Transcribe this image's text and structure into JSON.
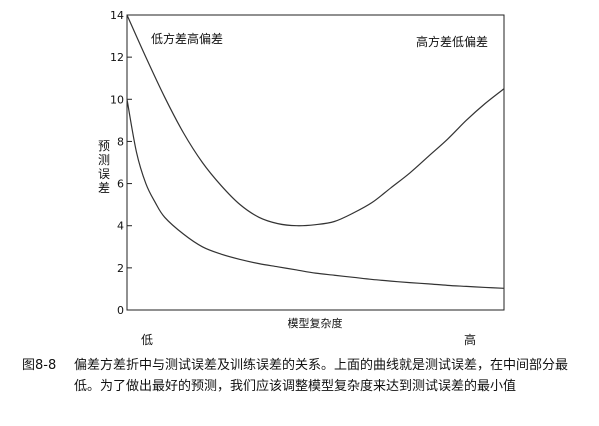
{
  "chart_data": {
    "type": "line",
    "title": "",
    "xlabel": "模型复杂度",
    "ylabel": "预测误差",
    "x_tick_labels": [
      "低",
      "高"
    ],
    "xlim": [
      0,
      10
    ],
    "ylim": [
      0,
      14
    ],
    "y_ticks": [
      0,
      2,
      4,
      6,
      8,
      10,
      12,
      14
    ],
    "grid": false,
    "annotations": [
      "低方差高偏差",
      "高方差低偏差"
    ],
    "series": [
      {
        "x": [
          0,
          0.5,
          1,
          1.5,
          2,
          2.5,
          3,
          3.5,
          4,
          4.5,
          5,
          5.5,
          6,
          6.5,
          7,
          7.5,
          8,
          8.5,
          9,
          9.5,
          10
        ],
        "values": [
          14.0,
          12.0,
          10.1,
          8.4,
          7.0,
          5.9,
          5.0,
          4.4,
          4.1,
          4.0,
          4.05,
          4.2,
          4.6,
          5.1,
          5.8,
          6.5,
          7.3,
          8.1,
          9.0,
          9.8,
          10.5
        ]
      },
      {
        "x": [
          0,
          0.25,
          0.5,
          0.75,
          1,
          1.5,
          2,
          2.5,
          3,
          3.5,
          4,
          4.5,
          5,
          5.5,
          6,
          6.5,
          7,
          7.5,
          8,
          8.5,
          9,
          9.5,
          10
        ],
        "values": [
          10.0,
          7.5,
          6.0,
          5.1,
          4.4,
          3.6,
          3.0,
          2.65,
          2.4,
          2.2,
          2.05,
          1.9,
          1.75,
          1.65,
          1.55,
          1.45,
          1.37,
          1.3,
          1.24,
          1.17,
          1.12,
          1.07,
          1.03
        ]
      }
    ]
  },
  "caption": {
    "number": "图8-8",
    "text": "偏差方差折中与测试误差及训练误差的关系。上面的曲线就是测试误差，在中间部分最低。为了做出最好的预测，我们应该调整模型复杂度来达到测试误差的最小值"
  }
}
